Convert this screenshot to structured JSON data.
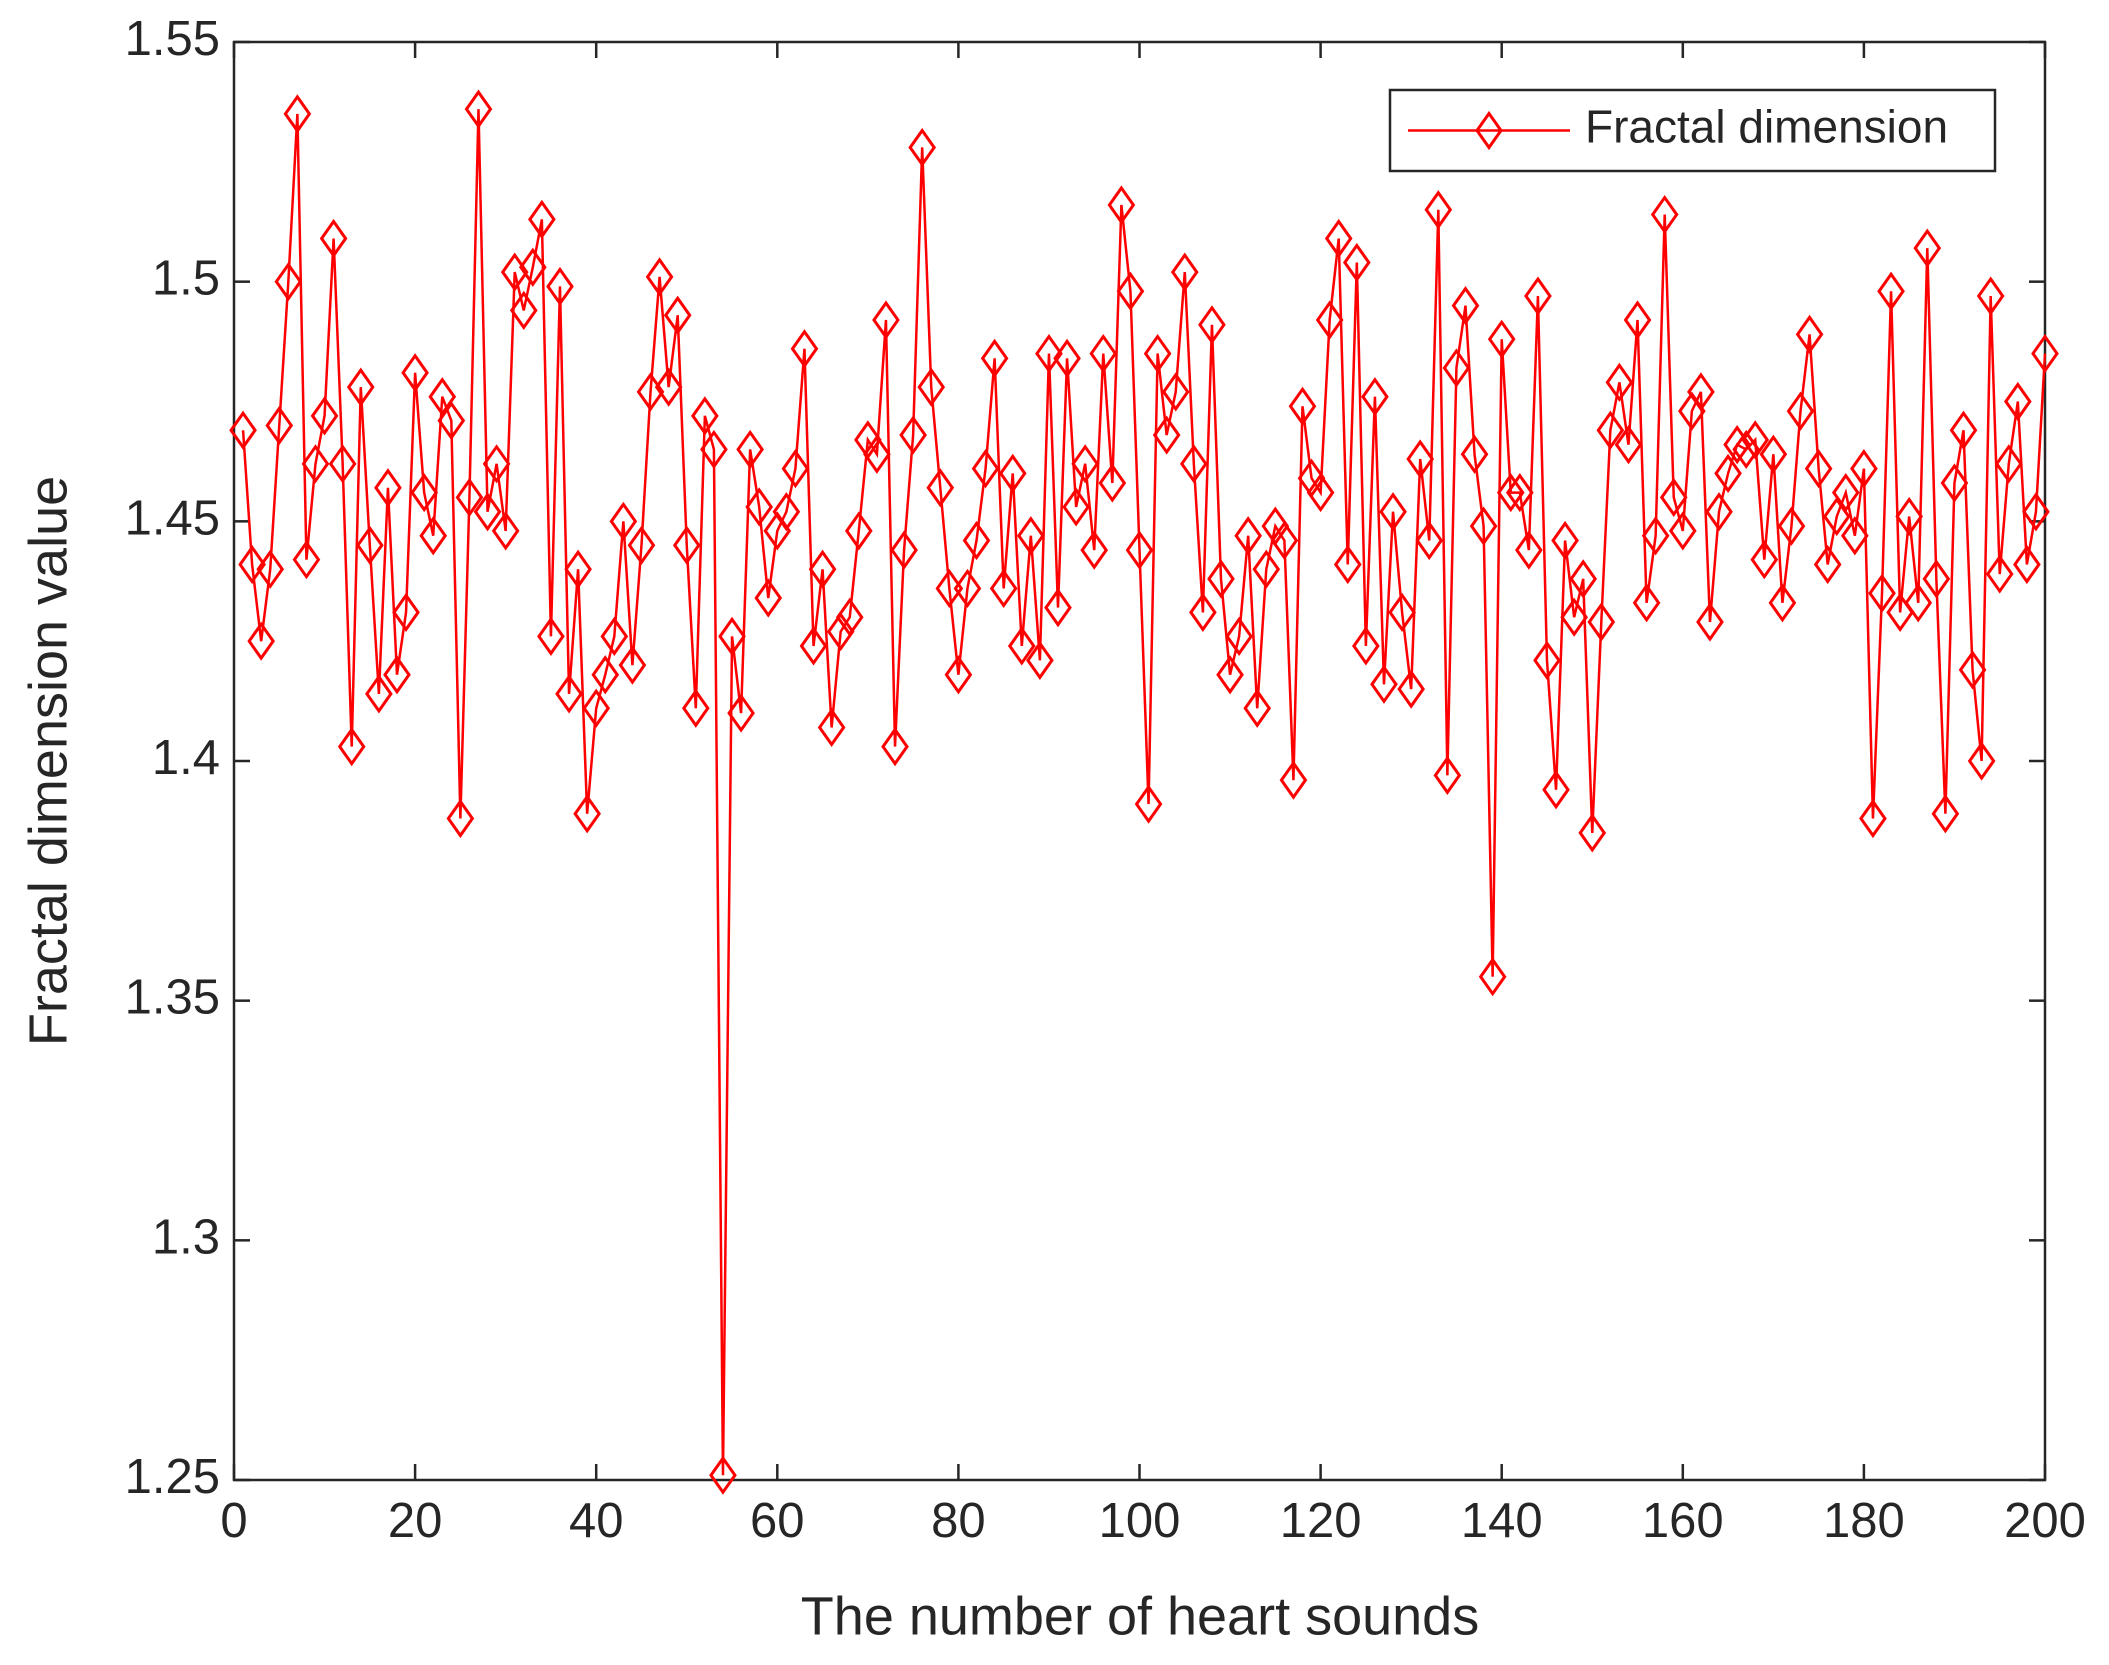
{
  "chart_data": {
    "type": "line",
    "xlabel": "The number of heart sounds",
    "ylabel": "Fractal dimension value",
    "legend": "northeast",
    "box": true,
    "xlim": [
      0,
      200
    ],
    "xticks": [
      0,
      20,
      40,
      60,
      80,
      100,
      120,
      140,
      160,
      180,
      200
    ],
    "ylim": [
      1.25,
      1.55
    ],
    "yticks": [
      1.25,
      1.3,
      1.35,
      1.4,
      1.45,
      1.5,
      1.55
    ],
    "x": [
      1,
      2,
      3,
      4,
      5,
      6,
      7,
      8,
      9,
      10,
      11,
      12,
      13,
      14,
      15,
      16,
      17,
      18,
      19,
      20,
      21,
      22,
      23,
      24,
      25,
      26,
      27,
      28,
      29,
      30,
      31,
      32,
      33,
      34,
      35,
      36,
      37,
      38,
      39,
      40,
      41,
      42,
      43,
      44,
      45,
      46,
      47,
      48,
      49,
      50,
      51,
      52,
      53,
      54,
      55,
      56,
      57,
      58,
      59,
      60,
      61,
      62,
      63,
      64,
      65,
      66,
      67,
      68,
      69,
      70,
      71,
      72,
      73,
      74,
      75,
      76,
      77,
      78,
      79,
      80,
      81,
      82,
      83,
      84,
      85,
      86,
      87,
      88,
      89,
      90,
      91,
      92,
      93,
      94,
      95,
      96,
      97,
      98,
      99,
      100,
      101,
      102,
      103,
      104,
      105,
      106,
      107,
      108,
      109,
      110,
      111,
      112,
      113,
      114,
      115,
      116,
      117,
      118,
      119,
      120,
      121,
      122,
      123,
      124,
      125,
      126,
      127,
      128,
      129,
      130,
      131,
      132,
      133,
      134,
      135,
      136,
      137,
      138,
      139,
      140,
      141,
      142,
      143,
      144,
      145,
      146,
      147,
      148,
      149,
      150,
      151,
      152,
      153,
      154,
      155,
      156,
      157,
      158,
      159,
      160,
      161,
      162,
      163,
      164,
      165,
      166,
      167,
      168,
      169,
      170,
      171,
      172,
      173,
      174,
      175,
      176,
      177,
      178,
      179,
      180,
      181,
      182,
      183,
      184,
      185,
      186,
      187,
      188,
      189,
      190,
      191,
      192,
      193,
      194,
      195,
      196,
      197,
      198,
      199,
      200
    ],
    "series": [
      {
        "name": "Fractal dimension",
        "color": "#ff0000",
        "marker": "diamond",
        "values": [
          1.469,
          1.441,
          1.425,
          1.44,
          1.47,
          1.5,
          1.535,
          1.442,
          1.462,
          1.472,
          1.509,
          1.462,
          1.403,
          1.478,
          1.445,
          1.414,
          1.457,
          1.418,
          1.431,
          1.481,
          1.456,
          1.447,
          1.476,
          1.471,
          1.388,
          1.455,
          1.536,
          1.452,
          1.462,
          1.448,
          1.502,
          1.494,
          1.503,
          1.513,
          1.426,
          1.499,
          1.414,
          1.44,
          1.389,
          1.411,
          1.418,
          1.426,
          1.45,
          1.42,
          1.445,
          1.477,
          1.501,
          1.478,
          1.493,
          1.445,
          1.411,
          1.472,
          1.465,
          1.251,
          1.426,
          1.41,
          1.465,
          1.453,
          1.434,
          1.448,
          1.452,
          1.461,
          1.486,
          1.424,
          1.44,
          1.407,
          1.427,
          1.43,
          1.448,
          1.467,
          1.464,
          1.492,
          1.403,
          1.444,
          1.468,
          1.528,
          1.478,
          1.457,
          1.436,
          1.418,
          1.436,
          1.446,
          1.461,
          1.484,
          1.436,
          1.46,
          1.424,
          1.447,
          1.421,
          1.485,
          1.432,
          1.484,
          1.453,
          1.462,
          1.444,
          1.485,
          1.458,
          1.516,
          1.498,
          1.444,
          1.391,
          1.485,
          1.468,
          1.477,
          1.502,
          1.462,
          1.431,
          1.491,
          1.438,
          1.418,
          1.426,
          1.447,
          1.411,
          1.44,
          1.449,
          1.446,
          1.396,
          1.474,
          1.459,
          1.456,
          1.492,
          1.509,
          1.441,
          1.504,
          1.424,
          1.476,
          1.416,
          1.452,
          1.431,
          1.415,
          1.463,
          1.446,
          1.515,
          1.397,
          1.482,
          1.495,
          1.464,
          1.449,
          1.355,
          1.488,
          1.456,
          1.456,
          1.444,
          1.497,
          1.421,
          1.394,
          1.446,
          1.43,
          1.438,
          1.385,
          1.429,
          1.469,
          1.479,
          1.466,
          1.492,
          1.433,
          1.447,
          1.514,
          1.455,
          1.448,
          1.473,
          1.477,
          1.429,
          1.452,
          1.46,
          1.466,
          1.465,
          1.467,
          1.442,
          1.464,
          1.433,
          1.449,
          1.473,
          1.489,
          1.461,
          1.441,
          1.451,
          1.456,
          1.447,
          1.461,
          1.388,
          1.435,
          1.498,
          1.431,
          1.451,
          1.433,
          1.507,
          1.438,
          1.389,
          1.458,
          1.469,
          1.419,
          1.4,
          1.497,
          1.439,
          1.462,
          1.475,
          1.441,
          1.452,
          1.485
        ]
      }
    ]
  }
}
